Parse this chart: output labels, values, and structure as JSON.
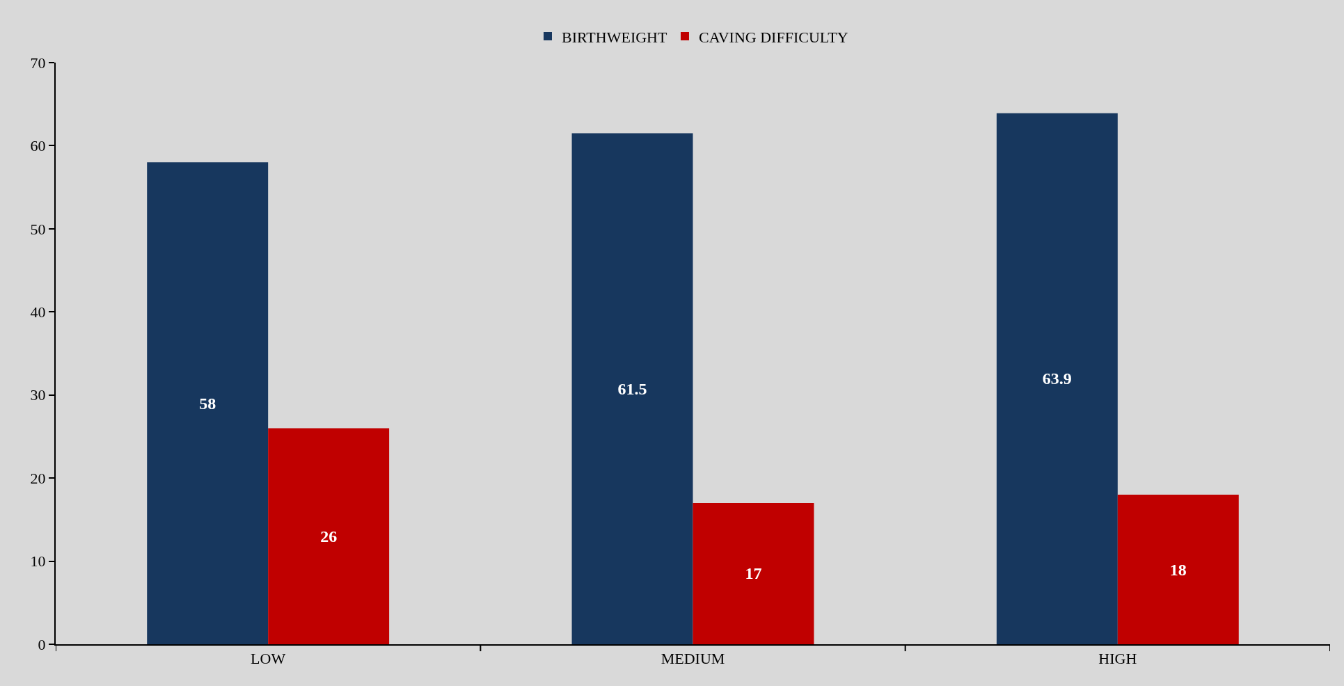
{
  "chart_data": {
    "type": "bar",
    "categories": [
      "LOW",
      "MEDIUM",
      "HIGH"
    ],
    "series": [
      {
        "name": "BIRTHWEIGHT",
        "color": "#17375e",
        "values": [
          58,
          61.5,
          63.9
        ]
      },
      {
        "name": "CAVING DIFFICULTY",
        "color": "#c00000",
        "values": [
          26,
          17,
          18
        ]
      }
    ],
    "ylim": [
      0,
      70
    ],
    "yticks": [
      0,
      10,
      20,
      30,
      40,
      50,
      60,
      70
    ],
    "grid": false,
    "legend": "top",
    "data_labels": true
  }
}
